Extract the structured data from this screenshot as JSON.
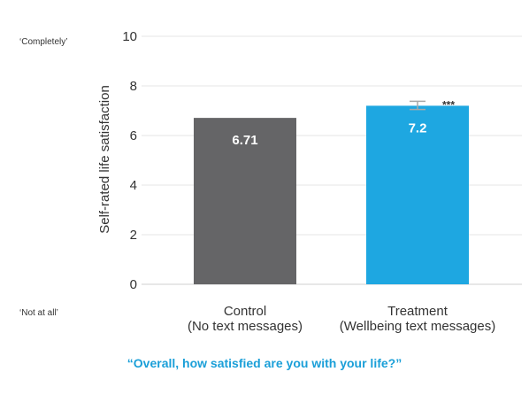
{
  "chart_data": {
    "type": "bar",
    "categories": [
      [
        "Control",
        "(No text messages)"
      ],
      [
        "Treatment",
        "(Wellbeing text messages)"
      ]
    ],
    "values": [
      6.71,
      7.2
    ],
    "value_labels": [
      "6.71",
      "7.2"
    ],
    "error_bar": [
      null,
      [
        7.05,
        7.38
      ]
    ],
    "significance": [
      null,
      "***"
    ],
    "colors": [
      "#656567",
      "#1ea7e1"
    ],
    "ylabel": "Self-rated life satisfaction",
    "ylim": [
      0,
      10
    ],
    "yticks": [
      0,
      2,
      4,
      6,
      8,
      10
    ],
    "grid": true,
    "scale_anchor_top": "‘Completely’",
    "scale_anchor_bottom": "‘Not at all’"
  },
  "question": "“Overall, how satisfied are you with your life?”"
}
